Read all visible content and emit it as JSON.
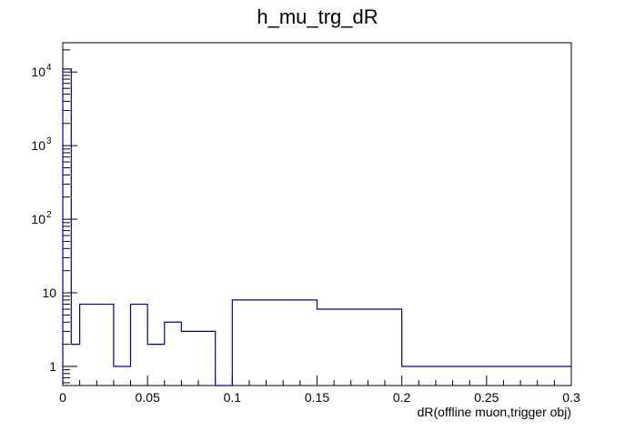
{
  "chart_data": {
    "type": "histogram",
    "title": "h_mu_trg_dR",
    "xlabel": "dR(offline muon,trigger obj)",
    "ylabel": "",
    "xlim": [
      0,
      0.3
    ],
    "ylim": [
      0.55,
      25000
    ],
    "y_scale": "log",
    "grid": false,
    "legend": "none",
    "line_color": "#000099",
    "x_ticks": [
      "0",
      "0.05",
      "0.1",
      "0.15",
      "0.2",
      "0.25",
      "0.3"
    ],
    "x_tick_values": [
      0,
      0.05,
      0.1,
      0.15,
      0.2,
      0.25,
      0.3
    ],
    "y_ticks": [
      {
        "base": "1",
        "exp": ""
      },
      {
        "base": "10",
        "exp": ""
      },
      {
        "base": "10",
        "exp": "2"
      },
      {
        "base": "10",
        "exp": "3"
      },
      {
        "base": "10",
        "exp": "4"
      }
    ],
    "y_tick_values": [
      1,
      10,
      100,
      1000,
      10000
    ],
    "bin_edges": [
      0,
      0.005,
      0.01,
      0.03,
      0.04,
      0.05,
      0.06,
      0.07,
      0.09,
      0.1,
      0.15,
      0.2,
      0.3
    ],
    "bin_values": [
      11000,
      2,
      7,
      1,
      7,
      2,
      4,
      3,
      0,
      8,
      6,
      1
    ]
  }
}
